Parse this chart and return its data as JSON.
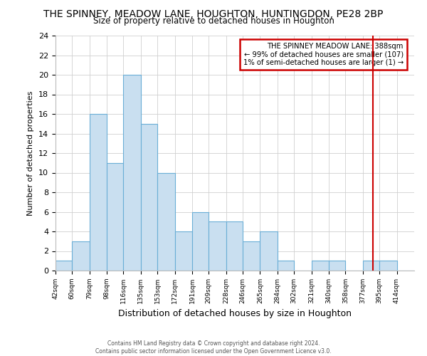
{
  "title": "THE SPINNEY, MEADOW LANE, HOUGHTON, HUNTINGDON, PE28 2BP",
  "subtitle": "Size of property relative to detached houses in Houghton",
  "xlabel": "Distribution of detached houses by size in Houghton",
  "ylabel": "Number of detached properties",
  "bin_labels": [
    "42sqm",
    "60sqm",
    "79sqm",
    "98sqm",
    "116sqm",
    "135sqm",
    "153sqm",
    "172sqm",
    "191sqm",
    "209sqm",
    "228sqm",
    "246sqm",
    "265sqm",
    "284sqm",
    "302sqm",
    "321sqm",
    "340sqm",
    "358sqm",
    "377sqm",
    "395sqm",
    "414sqm"
  ],
  "bin_edges": [
    42,
    60,
    79,
    98,
    116,
    135,
    153,
    172,
    191,
    209,
    228,
    246,
    265,
    284,
    302,
    321,
    340,
    358,
    377,
    395,
    414
  ],
  "bar_heights": [
    1,
    3,
    16,
    11,
    20,
    15,
    10,
    4,
    6,
    5,
    5,
    3,
    4,
    1,
    0,
    1,
    1,
    0,
    1,
    1,
    0
  ],
  "bar_facecolor": "#c9dff0",
  "bar_edgecolor": "#6aaed6",
  "ylim": [
    0,
    24
  ],
  "yticks": [
    0,
    2,
    4,
    6,
    8,
    10,
    12,
    14,
    16,
    18,
    20,
    22,
    24
  ],
  "property_line_x": 388,
  "property_line_color": "#cc0000",
  "annotation_title": "THE SPINNEY MEADOW LANE: 388sqm",
  "annotation_line1": "← 99% of detached houses are smaller (107)",
  "annotation_line2": "1% of semi-detached houses are larger (1) →",
  "annotation_box_color": "#cc0000",
  "footer_line1": "Contains HM Land Registry data © Crown copyright and database right 2024.",
  "footer_line2": "Contains public sector information licensed under the Open Government Licence v3.0.",
  "background_color": "#ffffff",
  "grid_color": "#d0d0d0"
}
